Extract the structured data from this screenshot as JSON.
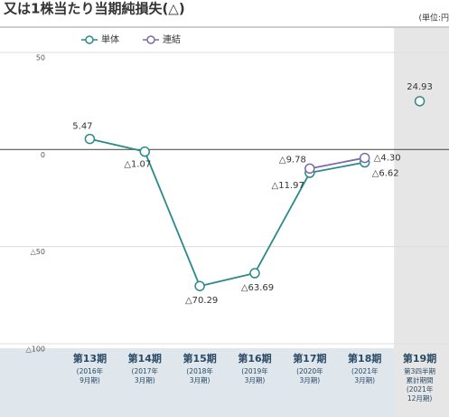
{
  "chart_data": {
    "type": "line",
    "title": "又は1株当たり当期純損失(△)",
    "unit_label": "(単位:円",
    "categories": [
      "第13期",
      "第14期",
      "第15期",
      "第16期",
      "第17期",
      "第18期",
      "第19期"
    ],
    "category_sublabels": [
      [
        "(2016年",
        "9月期)"
      ],
      [
        "(2017年",
        "3月期)"
      ],
      [
        "(2018年",
        "3月期)"
      ],
      [
        "(2019年",
        "3月期)"
      ],
      [
        "(2020年",
        "3月期)"
      ],
      [
        "(2021年",
        "3月期)"
      ],
      [
        "第3四半期",
        "累計期間",
        "(2021年",
        "12月期)"
      ]
    ],
    "shaded_categories": [
      6
    ],
    "series": [
      {
        "name": "単体",
        "color": "#2b8a8a",
        "values": [
          5.47,
          -1.07,
          -70.29,
          -63.69,
          -11.97,
          -6.62,
          24.93
        ],
        "value_labels": [
          "5.47",
          "△1.07",
          "△70.29",
          "△63.69",
          "△11.97",
          "△6.62",
          "24.93"
        ]
      },
      {
        "name": "連結",
        "color": "#7a6aa6",
        "values": [
          null,
          null,
          null,
          null,
          -9.78,
          -4.3,
          null
        ],
        "value_labels": [
          null,
          null,
          null,
          null,
          "△9.78",
          "△4.30",
          null
        ]
      }
    ],
    "ylim": [
      -100,
      50
    ],
    "yticks": [
      {
        "value": -100,
        "label": "△100"
      },
      {
        "value": -50,
        "label": "△50"
      },
      0,
      50
    ],
    "grid": true
  }
}
